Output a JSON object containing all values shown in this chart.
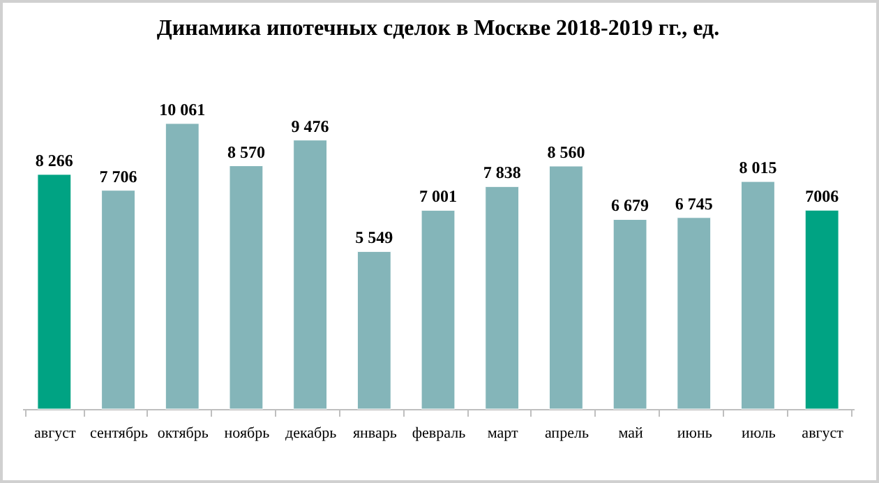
{
  "chart_data": {
    "type": "bar",
    "title": "Динамика ипотечных сделок в Москве 2018-2019 гг., ед.",
    "categories": [
      "август",
      "сентябрь",
      "октябрь",
      "ноябрь",
      "декабрь",
      "январь",
      "февраль",
      "март",
      "апрель",
      "май",
      "июнь",
      "июль",
      "август"
    ],
    "values": [
      8266,
      7706,
      10061,
      8570,
      9476,
      5549,
      7001,
      7838,
      8560,
      6679,
      6745,
      8015,
      7006
    ],
    "colors": [
      "#00a383",
      "#84b5b9",
      "#84b5b9",
      "#84b5b9",
      "#84b5b9",
      "#84b5b9",
      "#84b5b9",
      "#84b5b9",
      "#84b5b9",
      "#84b5b9",
      "#84b5b9",
      "#84b5b9",
      "#00a383"
    ],
    "value_labels": [
      "8 266",
      "7 706",
      "10 061",
      "8 570",
      "9 476",
      "5 549",
      "7 001",
      "7 838",
      "8 560",
      "6 679",
      "6 745",
      "8 015",
      "7006"
    ]
  }
}
